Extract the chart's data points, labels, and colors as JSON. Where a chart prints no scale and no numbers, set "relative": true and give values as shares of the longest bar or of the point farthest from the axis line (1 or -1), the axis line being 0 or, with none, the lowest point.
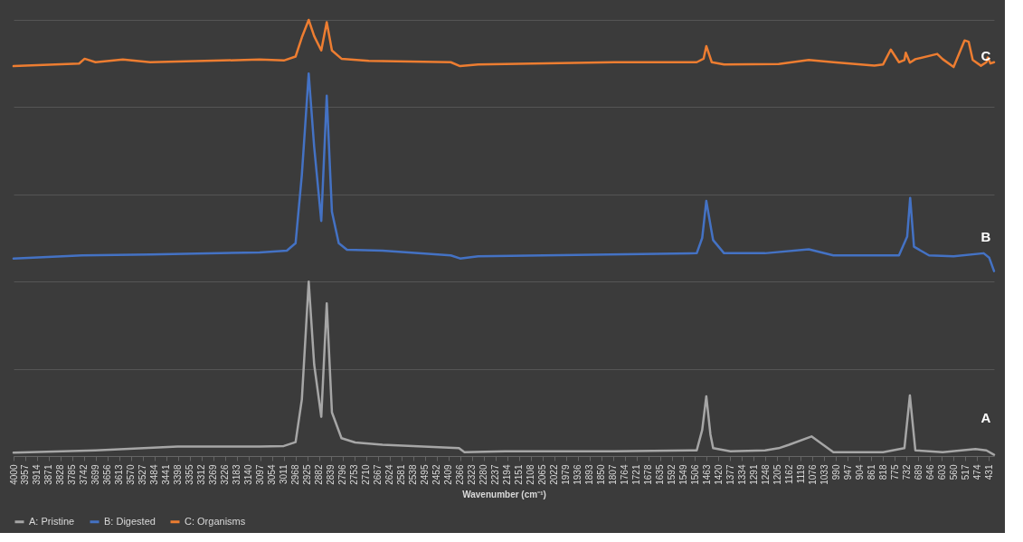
{
  "chart_data": {
    "type": "line",
    "xlabel": "Wavenumber (cm⁻¹)",
    "relative": true,
    "grid": "y",
    "legend": "bottom",
    "xlim": [
      4000,
      412
    ],
    "xticks": [
      4000,
      3957,
      3914,
      3871,
      3828,
      3785,
      3742,
      3699,
      3656,
      3613,
      3570,
      3527,
      3484,
      3441,
      3398,
      3355,
      3312,
      3269,
      3226,
      3183,
      3140,
      3097,
      3054,
      3011,
      2968,
      2925,
      2882,
      2839,
      2796,
      2753,
      2710,
      2667,
      2624,
      2581,
      2538,
      2495,
      2452,
      2409,
      2366,
      2323,
      2280,
      2237,
      2194,
      2151,
      2108,
      2065,
      2022,
      1979,
      1936,
      1893,
      1850,
      1807,
      1764,
      1721,
      1678,
      1635,
      1592,
      1549,
      1506,
      1463,
      1420,
      1377,
      1334,
      1291,
      1248,
      1205,
      1162,
      1119,
      1076,
      1033,
      990,
      947,
      904,
      861,
      818,
      775,
      732,
      689,
      646,
      603,
      560,
      517,
      474,
      431
    ],
    "series": [
      {
        "name": "A: Pristine",
        "color": "#a6a6a6",
        "x": [
          4000,
          3700,
          3400,
          3100,
          3011,
          2968,
          2945,
          2920,
          2900,
          2874,
          2854,
          2835,
          2800,
          2750,
          2650,
          2370,
          2350,
          2200,
          1800,
          1500,
          1480,
          1465,
          1450,
          1440,
          1377,
          1250,
          1200,
          1162,
          1080,
          1000,
          818,
          740,
          720,
          700,
          600,
          480,
          440,
          412
        ],
        "values": [
          0.008,
          0.013,
          0.022,
          0.022,
          0.023,
          0.032,
          0.13,
          0.4,
          0.21,
          0.09,
          0.35,
          0.1,
          0.041,
          0.031,
          0.026,
          0.018,
          0.009,
          0.011,
          0.011,
          0.013,
          0.06,
          0.137,
          0.05,
          0.018,
          0.011,
          0.013,
          0.018,
          0.026,
          0.045,
          0.009,
          0.009,
          0.018,
          0.139,
          0.013,
          0.009,
          0.016,
          0.013,
          0.003
        ]
      },
      {
        "name": "B: Digested",
        "color": "#4472c4",
        "x": [
          4000,
          3750,
          3500,
          3100,
          3000,
          2968,
          2945,
          2920,
          2900,
          2874,
          2854,
          2835,
          2810,
          2780,
          2650,
          2400,
          2366,
          2300,
          1500,
          1480,
          1465,
          1450,
          1440,
          1400,
          1250,
          1090,
          1000,
          760,
          730,
          719,
          705,
          650,
          560,
          450,
          430,
          412
        ],
        "values": [
          0.453,
          0.46,
          0.462,
          0.467,
          0.471,
          0.488,
          0.645,
          0.877,
          0.709,
          0.539,
          0.826,
          0.56,
          0.488,
          0.473,
          0.471,
          0.46,
          0.453,
          0.458,
          0.465,
          0.5,
          0.585,
          0.53,
          0.495,
          0.465,
          0.465,
          0.474,
          0.46,
          0.46,
          0.503,
          0.592,
          0.48,
          0.46,
          0.458,
          0.465,
          0.455,
          0.424
        ]
      },
      {
        "name": "C: Organisms",
        "color": "#ed7d31",
        "x": [
          4000,
          3760,
          3740,
          3700,
          3600,
          3500,
          3100,
          3011,
          2968,
          2945,
          2920,
          2900,
          2874,
          2854,
          2835,
          2800,
          2700,
          2400,
          2366,
          2300,
          1800,
          1500,
          1475,
          1465,
          1445,
          1400,
          1200,
          1090,
          1000,
          850,
          818,
          790,
          760,
          740,
          735,
          720,
          700,
          620,
          600,
          560,
          520,
          505,
          490,
          460,
          440,
          435,
          425,
          412
        ],
        "values": [
          0.894,
          0.9,
          0.911,
          0.903,
          0.909,
          0.903,
          0.909,
          0.907,
          0.916,
          0.96,
          1,
          0.963,
          0.93,
          0.995,
          0.93,
          0.911,
          0.906,
          0.903,
          0.894,
          0.898,
          0.903,
          0.903,
          0.911,
          0.94,
          0.903,
          0.898,
          0.899,
          0.908,
          0.903,
          0.895,
          0.898,
          0.932,
          0.903,
          0.908,
          0.925,
          0.902,
          0.91,
          0.922,
          0.91,
          0.892,
          0.953,
          0.95,
          0.908,
          0.895,
          0.903,
          0.914,
          0.9,
          0.903
        ]
      }
    ],
    "annotations": [
      "C",
      "B",
      "A"
    ]
  }
}
